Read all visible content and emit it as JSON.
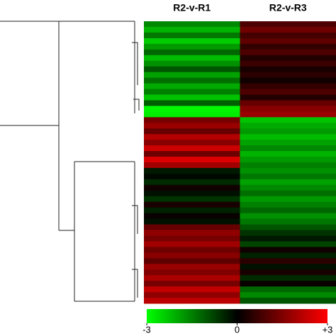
{
  "chart_data": {
    "type": "heatmap",
    "columns": [
      "R2-v-R1",
      "R2-v-R3"
    ],
    "values": [
      [
        -1.6,
        0.9
      ],
      [
        -2.1,
        1.3
      ],
      [
        -1.4,
        0.8
      ],
      [
        -2.4,
        1.1
      ],
      [
        -1.8,
        0.6
      ],
      [
        -1.2,
        0.9
      ],
      [
        -2.2,
        0.4
      ],
      [
        -1.7,
        0.7
      ],
      [
        -1.0,
        0.3
      ],
      [
        -1.9,
        0.5
      ],
      [
        -1.3,
        0.2
      ],
      [
        -2.0,
        0.6
      ],
      [
        -1.5,
        0.9
      ],
      [
        -2.3,
        0.4
      ],
      [
        -1.1,
        1.2
      ],
      [
        -2.9,
        1.6
      ],
      [
        -2.8,
        1.8
      ],
      [
        1.4,
        -2.3
      ],
      [
        1.8,
        -2.0
      ],
      [
        1.2,
        -1.8
      ],
      [
        2.1,
        -2.2
      ],
      [
        1.6,
        -1.9
      ],
      [
        2.4,
        -1.6
      ],
      [
        1.3,
        -2.1
      ],
      [
        2.6,
        -1.8
      ],
      [
        1.9,
        -1.5
      ],
      [
        -0.3,
        -1.7
      ],
      [
        -0.1,
        -1.4
      ],
      [
        -0.5,
        -1.9
      ],
      [
        0.2,
        -1.6
      ],
      [
        -0.2,
        -1.3
      ],
      [
        -0.6,
        -1.8
      ],
      [
        0.3,
        -1.5
      ],
      [
        -0.4,
        -1.2
      ],
      [
        0.1,
        -1.7
      ],
      [
        -0.2,
        -1.4
      ],
      [
        1.2,
        -1.0
      ],
      [
        1.7,
        -0.6
      ],
      [
        1.4,
        -0.3
      ],
      [
        1.9,
        -0.8
      ],
      [
        1.3,
        0.2
      ],
      [
        1.6,
        -0.4
      ],
      [
        1.1,
        0.5
      ],
      [
        1.8,
        -0.2
      ],
      [
        1.5,
        0.3
      ],
      [
        2.0,
        -0.5
      ],
      [
        1.4,
        0.1
      ],
      [
        2.3,
        -1.2
      ],
      [
        1.7,
        -1.6
      ],
      [
        2.2,
        -1.0
      ]
    ],
    "zlim": [
      -3,
      3
    ],
    "colors": [
      "#00ff00",
      "#000000",
      "#ff0000"
    ],
    "zticks": [
      -3,
      0,
      {
        "value": 3,
        "label": "+3"
      }
    ]
  }
}
